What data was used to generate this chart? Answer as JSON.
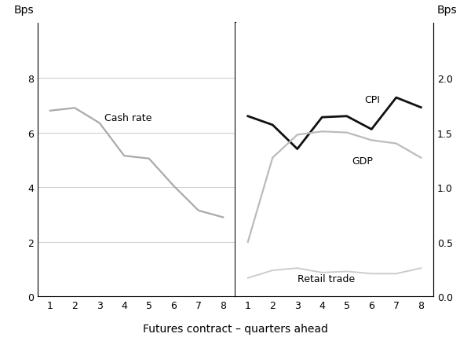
{
  "left_x": [
    1,
    2,
    3,
    4,
    5,
    6,
    7,
    8
  ],
  "cash_rate": [
    6.8,
    6.9,
    6.35,
    5.15,
    5.05,
    4.05,
    3.15,
    2.9
  ],
  "right_x": [
    1,
    2,
    3,
    4,
    5,
    6,
    7,
    8
  ],
  "cpi": [
    1.65,
    1.57,
    1.35,
    1.64,
    1.65,
    1.53,
    1.82,
    1.73
  ],
  "gdp": [
    0.5,
    1.27,
    1.48,
    1.51,
    1.5,
    1.43,
    1.4,
    1.27
  ],
  "retail_trade": [
    0.17,
    0.24,
    0.26,
    0.22,
    0.23,
    0.21,
    0.21,
    0.26
  ],
  "cash_rate_color": "#aaaaaa",
  "cpi_color": "#111111",
  "gdp_color": "#bbbbbb",
  "retail_trade_color": "#cccccc",
  "ylabel_left": "Bps",
  "ylabel_right": "Bps",
  "xlabel": "Futures contract – quarters ahead",
  "ylim_left": [
    0,
    10
  ],
  "ylim_right": [
    0.0,
    2.5
  ],
  "yticks_left": [
    0,
    2,
    4,
    6,
    8
  ],
  "yticks_right": [
    0.0,
    0.5,
    1.0,
    1.5,
    2.0
  ],
  "ytick_labels_left": [
    "0",
    "2",
    "4",
    "6",
    "8"
  ],
  "ytick_labels_right": [
    "0.0",
    "0.5",
    "1.0",
    "1.5",
    "2.0"
  ],
  "background_color": "#ffffff",
  "grid_color": "#cccccc",
  "label_cash_rate": "Cash rate",
  "label_cpi": "CPI",
  "label_gdp": "GDP",
  "label_retail_trade": "Retail trade",
  "lw_cash": 1.6,
  "lw_cpi": 2.0,
  "lw_gdp": 1.6,
  "lw_retail": 1.4
}
